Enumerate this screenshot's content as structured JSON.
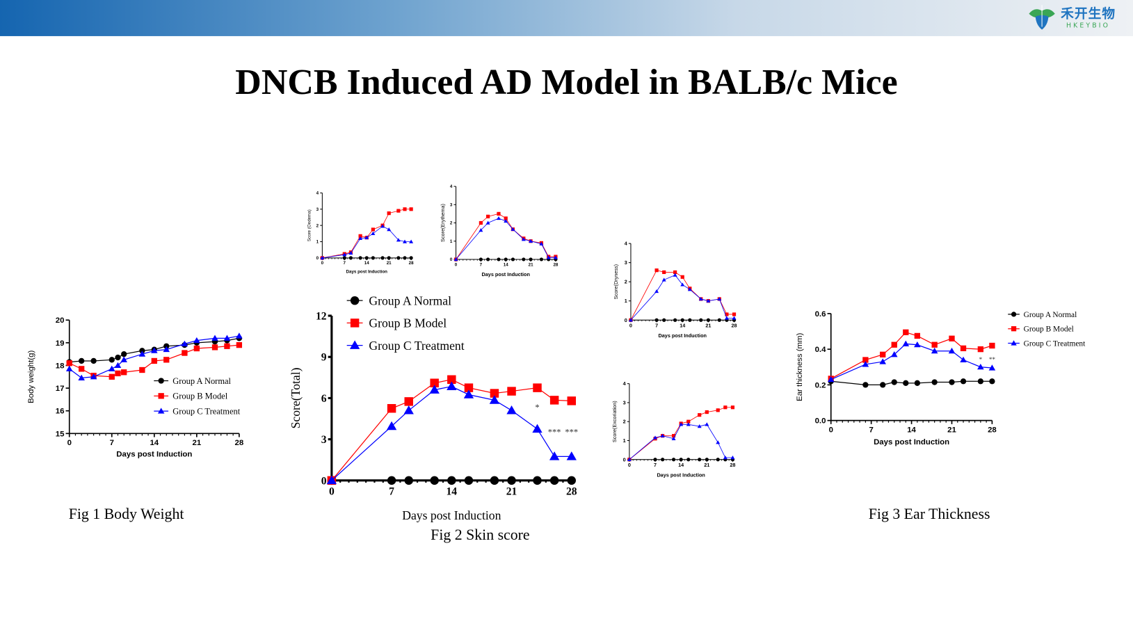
{
  "header": {
    "logo_cn": "禾开生物",
    "logo_en": "HKEYBIO",
    "brand_color": "#1f74c0",
    "brand_color_2": "#3aa655"
  },
  "title": "DNCB Induced AD Model in BALB/c Mice",
  "captions": {
    "fig1": "Fig 1 Body Weight",
    "fig2": "Fig 2 Skin score",
    "fig3": "Fig 3 Ear Thickness"
  },
  "legend": {
    "items": [
      {
        "label": "Group A Normal",
        "color": "#000000",
        "marker": "circle"
      },
      {
        "label": "Group B Model",
        "color": "#ff0000",
        "marker": "square"
      },
      {
        "label": "Group C Treatment",
        "color": "#0000ff",
        "marker": "triangle"
      }
    ]
  },
  "chart_data": [
    {
      "type": "line",
      "xlabel": "Days post Induction",
      "ylabel": "Body weight(g)",
      "ylim": [
        15,
        20
      ],
      "yticks": [
        "15",
        "16",
        "17",
        "18",
        "19",
        "20"
      ],
      "xlim": [
        0,
        28
      ],
      "xticks": [
        "0",
        "7",
        "14",
        "21",
        "28"
      ],
      "legend": "inside-bottom-right",
      "x": [
        0,
        2,
        4,
        7,
        8,
        9,
        12,
        14,
        16,
        19,
        21,
        24,
        26,
        28
      ],
      "series": [
        {
          "name": "Group A Normal",
          "color": "#000000",
          "values": [
            18.15,
            18.2,
            18.2,
            18.25,
            18.35,
            18.5,
            18.65,
            18.7,
            18.85,
            18.9,
            19.0,
            19.05,
            19.1,
            19.2
          ]
        },
        {
          "name": "Group B Model",
          "color": "#ff0000",
          "values": [
            18.1,
            17.85,
            17.55,
            17.5,
            17.65,
            17.7,
            17.8,
            18.2,
            18.25,
            18.55,
            18.75,
            18.8,
            18.85,
            18.9
          ]
        },
        {
          "name": "Group C Treatment",
          "color": "#0000ff",
          "values": [
            17.85,
            17.45,
            17.5,
            17.85,
            18.0,
            18.25,
            18.5,
            18.65,
            18.7,
            18.95,
            19.1,
            19.2,
            19.2,
            19.3
          ]
        }
      ]
    },
    {
      "type": "line",
      "xlabel": "Days post Induction",
      "ylabel": "Score(Total)",
      "ylim": [
        0,
        12
      ],
      "yticks": [
        "0",
        "3",
        "6",
        "9",
        "12"
      ],
      "xlim": [
        0,
        28
      ],
      "xticks": [
        "0",
        "7",
        "14",
        "21",
        "28"
      ],
      "legend": "top-left",
      "x": [
        0,
        7,
        9,
        12,
        14,
        16,
        19,
        21,
        24,
        26,
        28
      ],
      "series": [
        {
          "name": "Group A Normal",
          "color": "#000000",
          "values": [
            0,
            0,
            0,
            0,
            0,
            0,
            0,
            0,
            0,
            0,
            0
          ]
        },
        {
          "name": "Group B Model",
          "color": "#ff0000",
          "values": [
            0,
            5.25,
            5.75,
            7.1,
            7.35,
            6.75,
            6.35,
            6.5,
            6.75,
            5.85,
            5.8
          ]
        },
        {
          "name": "Group C Treatment",
          "color": "#0000ff",
          "values": [
            0,
            3.95,
            5.1,
            6.6,
            6.85,
            6.25,
            5.85,
            5.1,
            3.75,
            1.75,
            1.75
          ]
        }
      ],
      "annotations": [
        {
          "x": 24,
          "y": 5.1,
          "text": "*"
        },
        {
          "x": 26,
          "y": 3.3,
          "text": "***"
        },
        {
          "x": 28,
          "y": 3.3,
          "text": "***"
        }
      ]
    },
    {
      "type": "line",
      "xlabel": "Days post Induction",
      "ylabel": "Score (Oedema)",
      "ylim": [
        0,
        4
      ],
      "yticks": [
        "0",
        "1",
        "2",
        "3",
        "4"
      ],
      "xlim": [
        0,
        28
      ],
      "xticks": [
        "0",
        "7",
        "14",
        "21",
        "28"
      ],
      "x": [
        0,
        7,
        9,
        12,
        14,
        16,
        19,
        21,
        24,
        26,
        28
      ],
      "series": [
        {
          "color": "#000000",
          "values": [
            0,
            0,
            0,
            0,
            0,
            0,
            0,
            0,
            0,
            0,
            0
          ]
        },
        {
          "color": "#ff0000",
          "values": [
            0,
            0.25,
            0.35,
            1.35,
            1.25,
            1.75,
            2.0,
            2.75,
            2.9,
            3.0,
            3.0
          ]
        },
        {
          "color": "#0000ff",
          "values": [
            0,
            0.2,
            0.3,
            1.2,
            1.25,
            1.5,
            1.95,
            1.75,
            1.1,
            1.0,
            1.0
          ]
        }
      ]
    },
    {
      "type": "line",
      "xlabel": "Days post Induction",
      "ylabel": "Score(Erythema)",
      "ylim": [
        0,
        4
      ],
      "yticks": [
        "0",
        "1",
        "2",
        "3",
        "4"
      ],
      "xlim": [
        0,
        28
      ],
      "xticks": [
        "0",
        "7",
        "14",
        "21",
        "28"
      ],
      "x": [
        0,
        7,
        9,
        12,
        14,
        16,
        19,
        21,
        24,
        26,
        28
      ],
      "series": [
        {
          "color": "#000000",
          "values": [
            0,
            0,
            0,
            0,
            0,
            0,
            0,
            0,
            0,
            0,
            0
          ]
        },
        {
          "color": "#ff0000",
          "values": [
            0,
            2.0,
            2.35,
            2.5,
            2.25,
            1.65,
            1.15,
            1.0,
            0.9,
            0.15,
            0.15
          ]
        },
        {
          "color": "#0000ff",
          "values": [
            0,
            1.6,
            2.0,
            2.25,
            2.1,
            1.65,
            1.1,
            1.0,
            0.85,
            0.1,
            0.1
          ]
        }
      ]
    },
    {
      "type": "line",
      "xlabel": "Days post Induction",
      "ylabel": "Score(Dryness)",
      "ylim": [
        0,
        4
      ],
      "yticks": [
        "0",
        "1",
        "2",
        "3",
        "4"
      ],
      "xlim": [
        0,
        28
      ],
      "xticks": [
        "0",
        "7",
        "14",
        "21",
        "28"
      ],
      "x": [
        0,
        7,
        9,
        12,
        14,
        16,
        19,
        21,
        24,
        26,
        28
      ],
      "series": [
        {
          "color": "#000000",
          "values": [
            0,
            0,
            0,
            0,
            0,
            0,
            0,
            0,
            0,
            0,
            0
          ]
        },
        {
          "color": "#ff0000",
          "values": [
            0,
            2.6,
            2.5,
            2.5,
            2.25,
            1.65,
            1.1,
            1.0,
            1.1,
            0.3,
            0.3
          ]
        },
        {
          "color": "#0000ff",
          "values": [
            0,
            1.5,
            2.1,
            2.35,
            1.85,
            1.6,
            1.1,
            1.0,
            1.1,
            0.1,
            0.1
          ]
        }
      ]
    },
    {
      "type": "line",
      "xlabel": "Days post Induction",
      "ylabel": "Score(Excoriation)",
      "ylim": [
        0,
        4
      ],
      "yticks": [
        "0",
        "1",
        "2",
        "3",
        "4"
      ],
      "xlim": [
        0,
        28
      ],
      "xticks": [
        "0",
        "7",
        "14",
        "21",
        "28"
      ],
      "x": [
        0,
        7,
        9,
        12,
        14,
        16,
        19,
        21,
        24,
        26,
        28
      ],
      "series": [
        {
          "color": "#000000",
          "values": [
            0,
            0,
            0,
            0,
            0,
            0,
            0,
            0,
            0,
            0,
            0
          ]
        },
        {
          "color": "#ff0000",
          "values": [
            0,
            1.1,
            1.25,
            1.25,
            1.9,
            2.0,
            2.35,
            2.5,
            2.6,
            2.75,
            2.75
          ]
        },
        {
          "color": "#0000ff",
          "values": [
            0,
            1.15,
            1.25,
            1.1,
            1.85,
            1.85,
            1.75,
            1.85,
            0.9,
            0.1,
            0.1
          ]
        }
      ]
    },
    {
      "type": "line",
      "xlabel": "Days post Induction",
      "ylabel": "Ear thickness (mm)",
      "ylim": [
        0,
        0.6
      ],
      "yticks": [
        "0.0",
        "0.2",
        "0.4",
        "0.6"
      ],
      "xlim": [
        0,
        28
      ],
      "xticks": [
        "0",
        "7",
        "14",
        "21",
        "28"
      ],
      "legend": "right",
      "x": [
        0,
        6,
        9,
        11,
        13,
        15,
        18,
        21,
        23,
        26,
        28
      ],
      "series": [
        {
          "name": "Group A Normal",
          "color": "#000000",
          "values": [
            0.22,
            0.2,
            0.2,
            0.215,
            0.21,
            0.21,
            0.215,
            0.215,
            0.22,
            0.22,
            0.22
          ]
        },
        {
          "name": "Group B Model",
          "color": "#ff0000",
          "values": [
            0.235,
            0.34,
            0.37,
            0.425,
            0.495,
            0.475,
            0.425,
            0.46,
            0.405,
            0.4,
            0.42
          ]
        },
        {
          "name": "Group C Treatment",
          "color": "#0000ff",
          "values": [
            0.23,
            0.315,
            0.33,
            0.37,
            0.43,
            0.425,
            0.39,
            0.39,
            0.34,
            0.3,
            0.295
          ]
        }
      ],
      "annotations": [
        {
          "x": 26,
          "y": 0.33,
          "text": "*"
        },
        {
          "x": 28,
          "y": 0.33,
          "text": "**"
        }
      ]
    }
  ]
}
